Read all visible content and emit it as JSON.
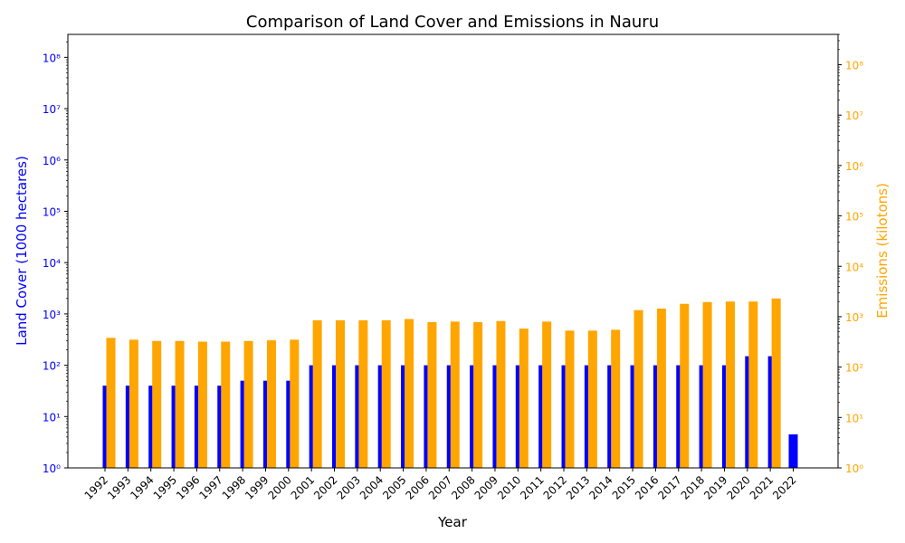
{
  "chart_data": {
    "type": "bar",
    "title": "Comparison of Land Cover and Emissions in Nauru",
    "xlabel": "Year",
    "ylabel_left": "Land Cover (1000 hectares)",
    "ylabel_right": "Emissions (kilotons)",
    "y_scale": "log",
    "ylim_left": [
      1,
      280000000
    ],
    "ylim_right": [
      1,
      400000000
    ],
    "y_ticks": [
      1,
      10,
      100,
      1000,
      10000,
      100000,
      1000000,
      10000000,
      100000000
    ],
    "y_tick_labels": [
      "10⁰",
      "10¹",
      "10²",
      "10³",
      "10⁴",
      "10⁵",
      "10⁶",
      "10⁷",
      "10⁸"
    ],
    "categories": [
      "1992",
      "1993",
      "1994",
      "1995",
      "1996",
      "1997",
      "1998",
      "1999",
      "2000",
      "2001",
      "2002",
      "2003",
      "2004",
      "2005",
      "2006",
      "2007",
      "2008",
      "2009",
      "2010",
      "2011",
      "2012",
      "2013",
      "2014",
      "2015",
      "2016",
      "2017",
      "2018",
      "2019",
      "2020",
      "2021",
      "2022"
    ],
    "series": [
      {
        "axis": "left",
        "color": "#0000ff",
        "values": [
          40,
          40,
          40,
          40,
          40,
          40,
          50,
          50,
          50,
          100,
          100,
          100,
          100,
          100,
          100,
          100,
          100,
          100,
          100,
          100,
          100,
          100,
          100,
          100,
          100,
          100,
          100,
          100,
          150,
          150,
          4.5
        ]
      },
      {
        "axis": "right",
        "color": "#ffa500",
        "values": [
          380,
          350,
          330,
          330,
          320,
          320,
          330,
          340,
          350,
          850,
          850,
          850,
          850,
          900,
          780,
          800,
          780,
          820,
          580,
          800,
          530,
          530,
          550,
          1350,
          1450,
          1800,
          1950,
          2000,
          2000,
          2300,
          null
        ]
      }
    ],
    "grid": false,
    "legend": "none"
  }
}
